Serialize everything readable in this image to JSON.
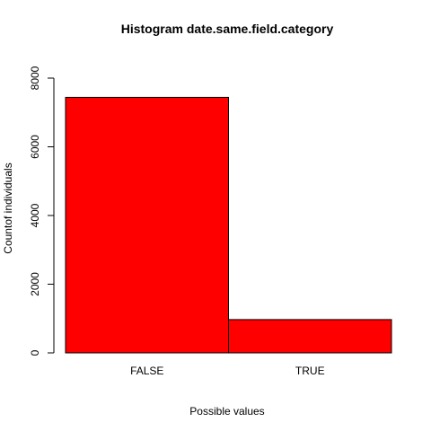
{
  "chart_data": {
    "type": "bar",
    "title": "Histogram date.same.field.category",
    "xlabel": "Possible values",
    "ylabel": "Countof individuals",
    "categories": [
      "FALSE",
      "TRUE"
    ],
    "values": [
      7440,
      970
    ],
    "ylim": [
      0,
      8000
    ],
    "yticks": [
      "0",
      "2000",
      "4000",
      "6000",
      "8000"
    ],
    "bar_color": "#ff0000",
    "grid": false
  }
}
